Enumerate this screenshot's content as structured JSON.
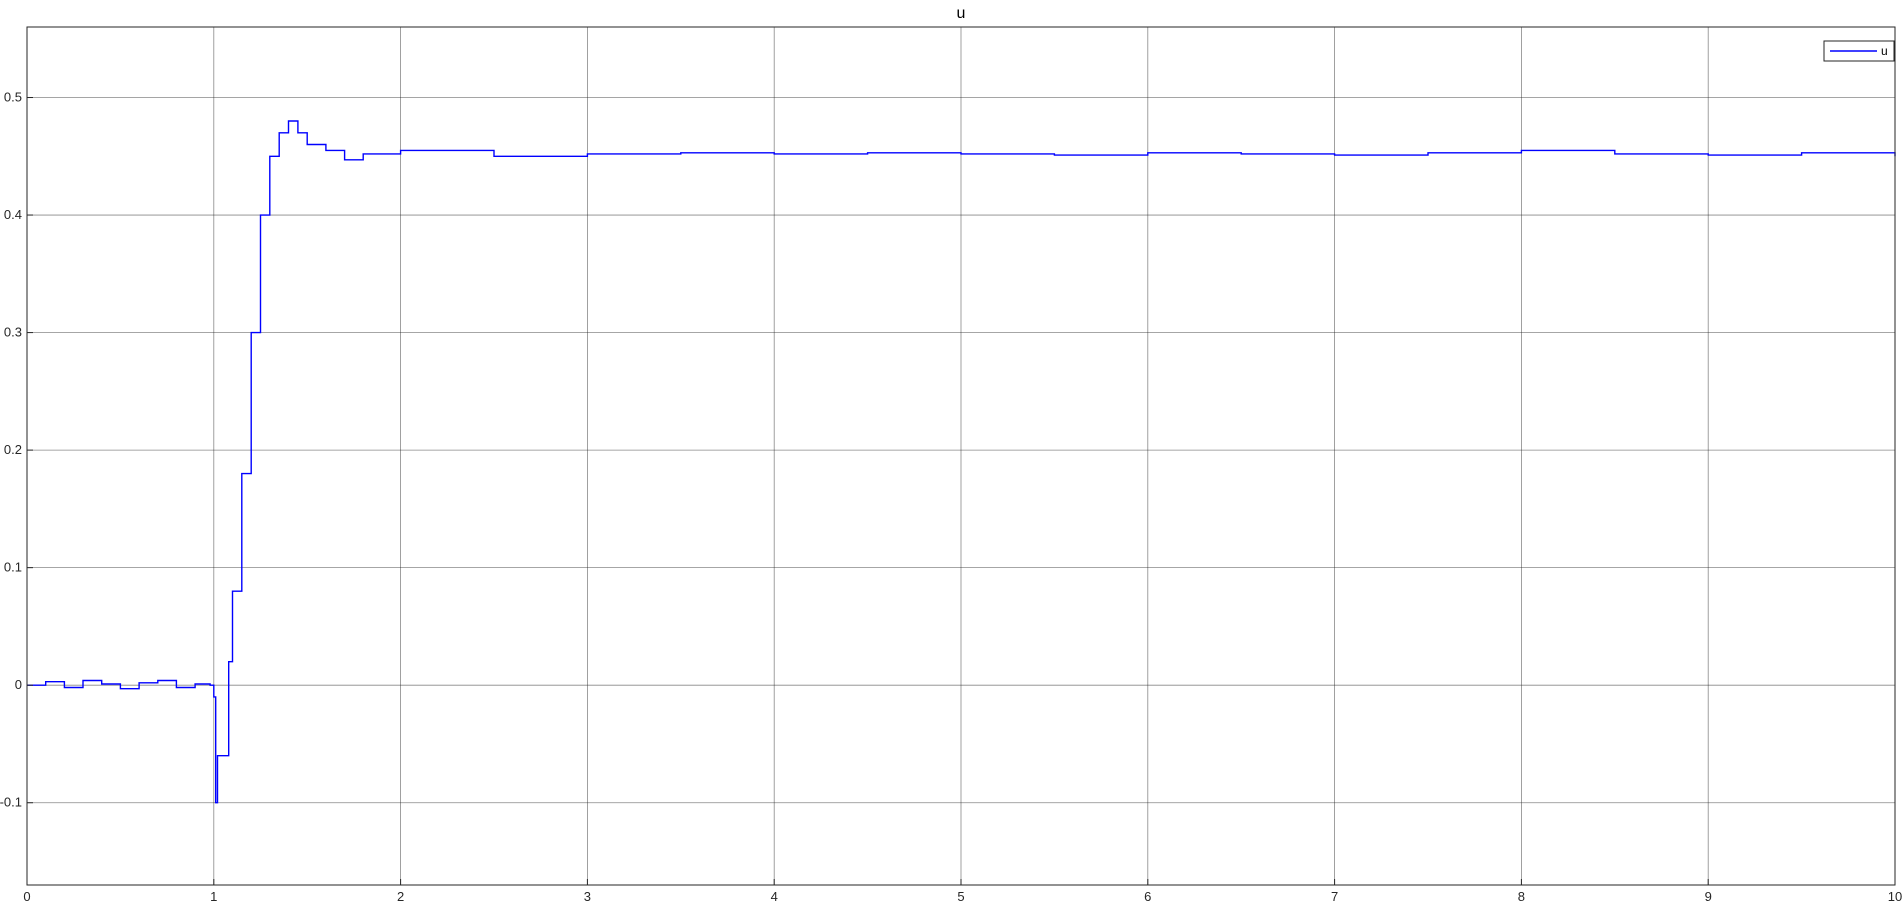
{
  "chart_data": {
    "type": "line",
    "title": "u",
    "xlabel": "",
    "ylabel": "",
    "xlim": [
      0,
      10
    ],
    "ylim": [
      -0.17,
      0.56
    ],
    "xticks": [
      0,
      1,
      2,
      3,
      4,
      5,
      6,
      7,
      8,
      9,
      10
    ],
    "xtick_labels": [
      "0",
      "1",
      "2",
      "3",
      "4",
      "5",
      "6",
      "7",
      "8",
      "9",
      "10"
    ],
    "yticks": [
      -0.1,
      0,
      0.1,
      0.2,
      0.3,
      0.4,
      0.5
    ],
    "ytick_labels": [
      "-0.1",
      "0",
      "0.1",
      "0.2",
      "0.3",
      "0.4",
      "0.5"
    ],
    "grid": true,
    "legend": {
      "placement": "top-right",
      "entries": [
        "u"
      ]
    },
    "series": [
      {
        "name": "u",
        "color": "#0000ff",
        "x": [
          0,
          0.1,
          0.2,
          0.3,
          0.4,
          0.5,
          0.6,
          0.7,
          0.8,
          0.9,
          0.98,
          1.0,
          1.01,
          1.02,
          1.05,
          1.08,
          1.1,
          1.15,
          1.2,
          1.25,
          1.3,
          1.35,
          1.4,
          1.45,
          1.5,
          1.6,
          1.7,
          1.8,
          2.0,
          2.5,
          3.0,
          3.5,
          4.0,
          4.5,
          5.0,
          5.5,
          6.0,
          6.5,
          7.0,
          7.5,
          8.0,
          8.5,
          9.0,
          9.5,
          10.0
        ],
        "y": [
          0,
          0.003,
          -0.002,
          0.004,
          0.001,
          -0.003,
          0.002,
          0.004,
          -0.002,
          0.001,
          0.0,
          -0.01,
          -0.1,
          -0.06,
          -0.06,
          0.02,
          0.08,
          0.18,
          0.3,
          0.4,
          0.45,
          0.47,
          0.48,
          0.47,
          0.46,
          0.455,
          0.447,
          0.452,
          0.455,
          0.45,
          0.452,
          0.453,
          0.452,
          0.453,
          0.452,
          0.451,
          0.453,
          0.452,
          0.451,
          0.453,
          0.455,
          0.452,
          0.451,
          0.453,
          0.45
        ]
      }
    ]
  }
}
